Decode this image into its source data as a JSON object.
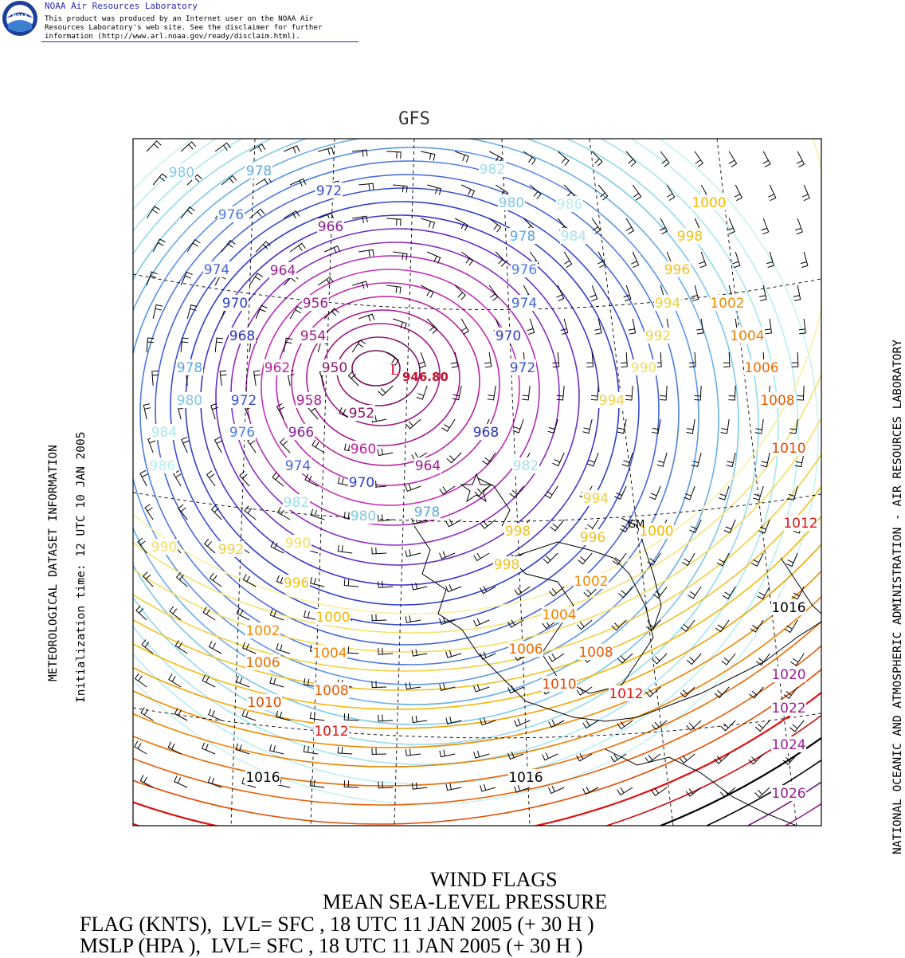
{
  "header": {
    "logo_text": "NOAA",
    "title": "NOAA Air Resources Laboratory",
    "disclaimer_lines": [
      "This product was produced by an Internet user on the NOAA Air",
      "Resources Laboratory's web site.  See the disclaimer for further",
      "information (http://www.arl.noaa.gov/ready/disclaim.html)."
    ]
  },
  "plot_title": "GFS",
  "left_titles": {
    "dataset": "METEOROLOGICAL DATASET INFORMATION",
    "init": "Initialization time: 12 UTC 10 JAN 2005"
  },
  "right_title": "NATIONAL OCEANIC AND ATMOSPHERIC ADMINISTRATION - AIR RESOURCES LABORATORY",
  "map": {
    "low_center": {
      "symbol": "L",
      "value": "946.80"
    },
    "station_label": "GM",
    "isobar_labels": [
      {
        "t": "980",
        "c": "#7ec8e8"
      },
      {
        "t": "978",
        "c": "#5aa8e0"
      },
      {
        "t": "982",
        "c": "#9fe0e8"
      },
      {
        "t": "980",
        "c": "#7ec8e8"
      },
      {
        "t": "986",
        "c": "#b8eef0"
      },
      {
        "t": "972",
        "c": "#3a4fd0"
      },
      {
        "t": "976",
        "c": "#4c7de0"
      },
      {
        "t": "966",
        "c": "#8a1a9a"
      },
      {
        "t": "978",
        "c": "#5aa8e0"
      },
      {
        "t": "984",
        "c": "#a7e6ec"
      },
      {
        "t": "974",
        "c": "#4466d8"
      },
      {
        "t": "964",
        "c": "#9b1e96"
      },
      {
        "t": "976",
        "c": "#4c7de0"
      },
      {
        "t": "970",
        "c": "#3040c8"
      },
      {
        "t": "956",
        "c": "#9a1c8c"
      },
      {
        "t": "974",
        "c": "#4466d8"
      },
      {
        "t": "968",
        "c": "#2a30b8"
      },
      {
        "t": "954",
        "c": "#9a1c8c"
      },
      {
        "t": "970",
        "c": "#3040c8"
      },
      {
        "t": "978",
        "c": "#5aa8e0"
      },
      {
        "t": "962",
        "c": "#b8209e"
      },
      {
        "t": "950",
        "c": "#8a1470"
      },
      {
        "t": "972",
        "c": "#3a4fd0"
      },
      {
        "t": "980",
        "c": "#7ec8e8"
      },
      {
        "t": "972",
        "c": "#3a4fd0"
      },
      {
        "t": "958",
        "c": "#a81c94"
      },
      {
        "t": "952",
        "c": "#8a1470"
      },
      {
        "t": "984",
        "c": "#a7e6ec"
      },
      {
        "t": "976",
        "c": "#4c7de0"
      },
      {
        "t": "966",
        "c": "#8a1a9a"
      },
      {
        "t": "968",
        "c": "#2a30b8"
      },
      {
        "t": "960",
        "c": "#b8209e"
      },
      {
        "t": "986",
        "c": "#b8eef0"
      },
      {
        "t": "974",
        "c": "#4466d8"
      },
      {
        "t": "964",
        "c": "#9b1e96"
      },
      {
        "t": "982",
        "c": "#9fe0e8"
      },
      {
        "t": "970",
        "c": "#3040c8"
      },
      {
        "t": "982",
        "c": "#9fe0e8"
      },
      {
        "t": "980",
        "c": "#7ec8e8"
      },
      {
        "t": "978",
        "c": "#5aa8e0"
      },
      {
        "t": "1000",
        "c": "#f5b800"
      },
      {
        "t": "998",
        "c": "#f0c020"
      },
      {
        "t": "996",
        "c": "#f0c020"
      },
      {
        "t": "994",
        "c": "#f2d040"
      },
      {
        "t": "1002",
        "c": "#ef8a00"
      },
      {
        "t": "992",
        "c": "#f2d040"
      },
      {
        "t": "1004",
        "c": "#ee8000"
      },
      {
        "t": "990",
        "c": "#f5dc60"
      },
      {
        "t": "1006",
        "c": "#ec6a00"
      },
      {
        "t": "1008",
        "c": "#e95a00"
      },
      {
        "t": "1010",
        "c": "#e34a00"
      },
      {
        "t": "994",
        "c": "#f2d040"
      },
      {
        "t": "1012",
        "c": "#dd1010"
      },
      {
        "t": "994",
        "c": "#f2d040"
      },
      {
        "t": "992",
        "c": "#f2d040"
      },
      {
        "t": "990",
        "c": "#f5dc60"
      },
      {
        "t": "990",
        "c": "#f5dc60"
      },
      {
        "t": "998",
        "c": "#f0c020"
      },
      {
        "t": "1000",
        "c": "#f5b800"
      },
      {
        "t": "996",
        "c": "#f0c020"
      },
      {
        "t": "996",
        "c": "#f0c020"
      },
      {
        "t": "1002",
        "c": "#ef8a00"
      },
      {
        "t": "998",
        "c": "#f0c020"
      },
      {
        "t": "1016",
        "c": "#000000"
      },
      {
        "t": "1000",
        "c": "#f5b800"
      },
      {
        "t": "1004",
        "c": "#ee8000"
      },
      {
        "t": "1002",
        "c": "#ef8a00"
      },
      {
        "t": "1020",
        "c": "#9b1e96"
      },
      {
        "t": "1006",
        "c": "#ec6a00"
      },
      {
        "t": "1008",
        "c": "#e95a00"
      },
      {
        "t": "1004",
        "c": "#ee8000"
      },
      {
        "t": "1022",
        "c": "#9b1e96"
      },
      {
        "t": "1006",
        "c": "#ec6a00"
      },
      {
        "t": "1010",
        "c": "#e34a00"
      },
      {
        "t": "1012",
        "c": "#dd1010"
      },
      {
        "t": "1024",
        "c": "#9b1e96"
      },
      {
        "t": "1010",
        "c": "#e34a00"
      },
      {
        "t": "1008",
        "c": "#e95a00"
      },
      {
        "t": "1012",
        "c": "#dd1010"
      },
      {
        "t": "1026",
        "c": "#9b1e96"
      },
      {
        "t": "1016",
        "c": "#000000"
      },
      {
        "t": "1016",
        "c": "#000000"
      }
    ]
  },
  "footer": {
    "line1": "WIND FLAGS",
    "line2": "MEAN SEA-LEVEL PRESSURE",
    "line3": "FLAG (KNTS),  LVL= SFC , 18 UTC 11 JAN 2005 (+ 30 H )",
    "line4": "MSLP (HPA ),  LVL= SFC , 18 UTC 11 JAN 2005 (+ 30 H )"
  }
}
